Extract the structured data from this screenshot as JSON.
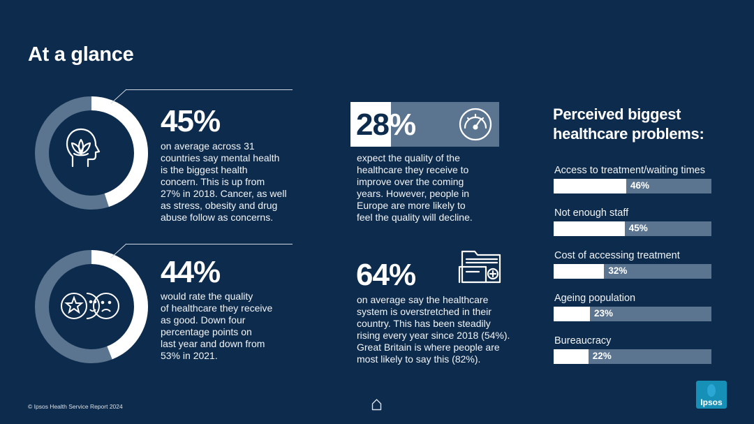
{
  "page_title": "At a glance",
  "stats": [
    {
      "value": "45%",
      "text": [
        "on average across 31",
        "countries say mental health",
        "is the biggest health",
        "concern. This is up from",
        "27% in 2018. Cancer, as well",
        "as stress, obesity and drug",
        "abuse follow as concerns."
      ],
      "ring_fraction": 0.45,
      "icon": "mental-health-head-icon"
    },
    {
      "value": "44%",
      "text": [
        "would rate the quality",
        "of healthcare they receive",
        "as good. Down four",
        "percentage points on",
        "last year and down from",
        "53% in 2021."
      ],
      "ring_fraction": 0.44,
      "icon": "rating-faces-icon"
    },
    {
      "value_prefix": "28",
      "value_suffix": "%",
      "text": [
        "expect the quality of the",
        "healthcare they receive to",
        "improve over the coming",
        "years. However, people in",
        "Europe are more likely to",
        "feel the quality will decline."
      ],
      "icon": "speedometer-icon"
    },
    {
      "value": "64%",
      "text": [
        "on average say the healthcare",
        "system is overstretched in their",
        "country. This has been steadily",
        "rising every year since 2018 (54%).",
        "Great Britain is where people are",
        "most likely to say this (82%)."
      ],
      "icon": "folder-plus-icon"
    }
  ],
  "chart_data": {
    "type": "bar",
    "orientation": "horizontal",
    "title": [
      "Perceived biggest",
      "healthcare problems:"
    ],
    "categories": [
      "Access to treatment/waiting times",
      "Not enough staff",
      "Cost of accessing treatment",
      "Ageing population",
      "Bureaucracy"
    ],
    "values": [
      46,
      45,
      32,
      23,
      22
    ],
    "value_labels": [
      "46%",
      "45%",
      "32%",
      "23%",
      "22%"
    ],
    "xlim": [
      0,
      100
    ],
    "colors": {
      "fill": "#ffffff",
      "track": "#5b7591"
    }
  },
  "footer": "© Ipsos Health Service Report 2024",
  "logo_text": "Ipsos",
  "colors": {
    "background": "#0d2b4c",
    "ring_track": "#5b7591",
    "ring_fill": "#ffffff",
    "logo": "#1790b8"
  },
  "home_icon": "home-icon"
}
